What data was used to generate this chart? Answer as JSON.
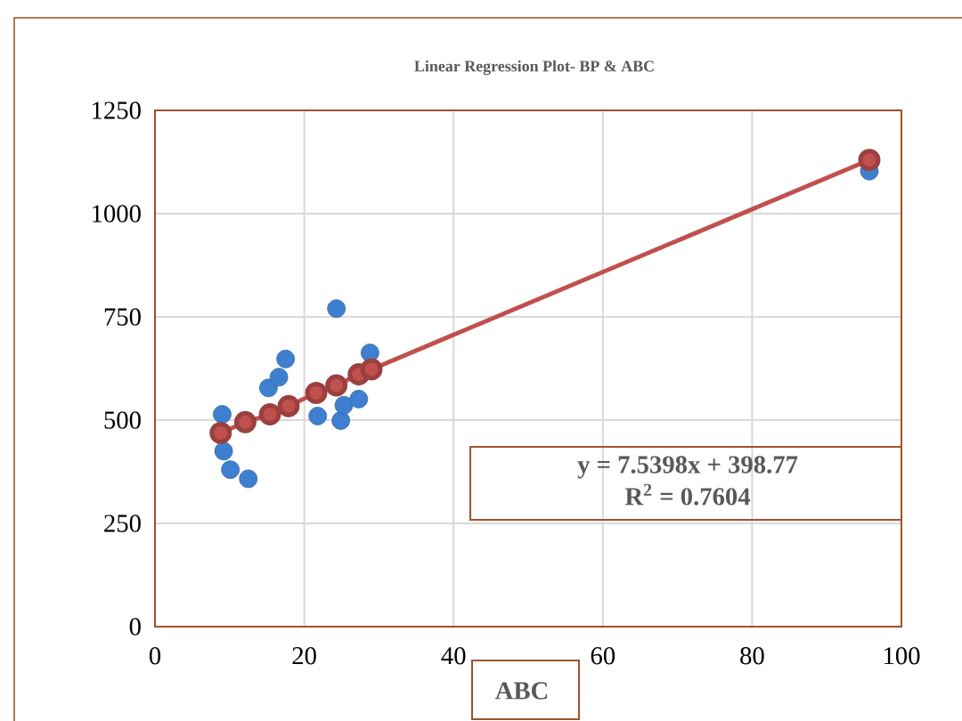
{
  "chart_data": {
    "type": "scatter",
    "title": "Linear Regression Plot- BP & ABC",
    "xlabel": "ABC",
    "xlim": [
      0,
      100
    ],
    "ylim": [
      0,
      1250
    ],
    "xticks": [
      0,
      20,
      40,
      60,
      80,
      100
    ],
    "yticks": [
      0,
      250,
      500,
      750,
      1000,
      1250
    ],
    "grid": true,
    "marker": "circle",
    "annotations": [
      "y = 7.5398x + 398.77",
      "R$^{2}$ = 0.7604"
    ],
    "series": [
      {
        "type": "scatter",
        "color": "#3f7fcf",
        "x": [
          9.0,
          9.2,
          10.1,
          12.5,
          15.2,
          16.6,
          17.5,
          24.3,
          21.8,
          24.9,
          25.3,
          27.3,
          28.8,
          95.7
        ],
        "values": [
          514,
          425,
          380,
          358,
          578,
          604,
          648,
          770,
          510,
          499,
          536,
          551,
          663,
          1103
        ]
      },
      {
        "type": "line",
        "color": "#c0504d",
        "x": [
          8.8,
          12.1,
          15.4,
          17.9,
          21.6,
          24.3,
          27.3,
          29.0,
          95.7
        ],
        "values": [
          469,
          495,
          514,
          534,
          566,
          584,
          611,
          623,
          1130
        ]
      }
    ]
  }
}
